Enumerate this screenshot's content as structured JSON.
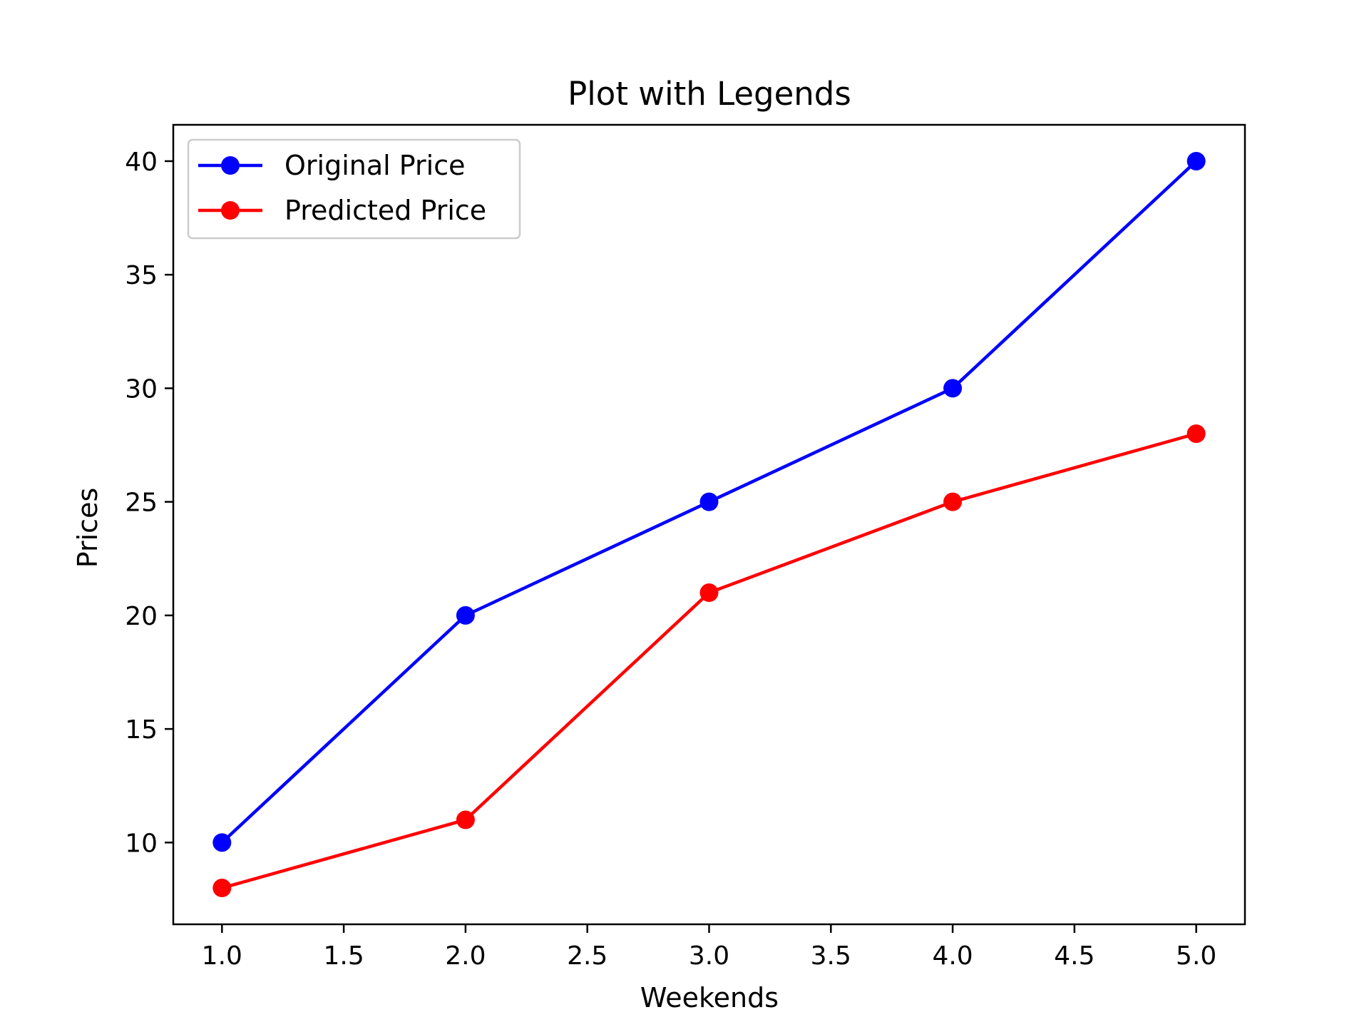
{
  "chart_data": {
    "type": "line",
    "title": "Plot with Legends",
    "xlabel": "Weekends",
    "ylabel": "Prices",
    "x": [
      1,
      2,
      3,
      4,
      5
    ],
    "series": [
      {
        "name": "Original Price",
        "values": [
          10,
          20,
          25,
          30,
          40
        ],
        "color": "#0000ff"
      },
      {
        "name": "Predicted Price",
        "values": [
          8,
          11,
          21,
          25,
          28
        ],
        "color": "#ff0000"
      }
    ],
    "xlim": [
      0.8,
      5.2
    ],
    "ylim": [
      6.4,
      41.6
    ],
    "xticks": [
      "1.0",
      "1.5",
      "2.0",
      "2.5",
      "3.0",
      "3.5",
      "4.0",
      "4.5",
      "5.0"
    ],
    "yticks": [
      "10",
      "15",
      "20",
      "25",
      "30",
      "35",
      "40"
    ],
    "grid": false,
    "legend_position": "top-left"
  }
}
